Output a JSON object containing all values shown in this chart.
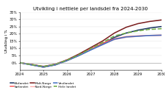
{
  "title": "Utvikling i nettleie per landsdel fra 2024-2030",
  "ylabel": "Utvikling i %",
  "years": [
    2024,
    2024.5,
    2025,
    2025.5,
    2026,
    2026.5,
    2027,
    2027.5,
    2028,
    2028.5,
    2029,
    2029.5,
    2030
  ],
  "series": {
    "Østlandet": [
      0,
      -1.5,
      -3.0,
      -1.5,
      1.5,
      5.0,
      9.0,
      13.0,
      17.5,
      20.5,
      22.5,
      24.0,
      25.0
    ],
    "Sørlandet": [
      0,
      -1.2,
      -2.8,
      -1.2,
      1.8,
      5.5,
      9.5,
      13.5,
      16.5,
      18.0,
      18.5,
      18.8,
      19.0
    ],
    "Midt-Norge": [
      0,
      -1.2,
      -2.5,
      -1.0,
      2.0,
      6.0,
      10.5,
      15.0,
      20.5,
      24.5,
      27.0,
      28.5,
      29.5
    ],
    "Nord-Norge": [
      0,
      -1.3,
      -2.8,
      -1.2,
      1.6,
      5.2,
      9.0,
      12.5,
      16.0,
      17.5,
      18.2,
      18.8,
      19.0
    ],
    "Vestlandet": [
      0,
      -1.4,
      -2.9,
      -1.4,
      1.5,
      5.0,
      8.8,
      12.5,
      16.2,
      17.8,
      18.3,
      18.8,
      19.0
    ],
    "Hele landet": [
      0,
      -1.3,
      -2.6,
      -1.1,
      1.8,
      5.5,
      9.8,
      14.0,
      18.5,
      20.5,
      22.0,
      23.0,
      23.5
    ]
  },
  "colors": {
    "Østlandet": "#1f3864",
    "Sørlandet": "#ff6060",
    "Midt-Norge": "#7b2020",
    "Nord-Norge": "#ffaaaa",
    "Vestlandet": "#4472c4",
    "Hele landet": "#70ad47"
  },
  "linestyles": {
    "Østlandet": "-",
    "Sørlandet": "-",
    "Midt-Norge": "-",
    "Nord-Norge": "-",
    "Vestlandet": "-",
    "Hele landet": "--"
  },
  "linewidths": {
    "Østlandet": 1.2,
    "Sørlandet": 1.2,
    "Midt-Norge": 1.2,
    "Nord-Norge": 1.0,
    "Vestlandet": 1.2,
    "Hele landet": 1.2
  },
  "ylim": [
    -5,
    35
  ],
  "yticks": [
    0,
    5,
    10,
    15,
    20,
    25,
    30,
    35
  ],
  "xticks": [
    2024,
    2025,
    2026,
    2027,
    2028,
    2029,
    2030
  ],
  "bg_color": "#ffffff",
  "legend_ncol": 3,
  "title_fontsize": 5.2,
  "axis_fontsize": 4.0,
  "tick_fontsize": 3.8,
  "legend_fontsize": 3.2
}
